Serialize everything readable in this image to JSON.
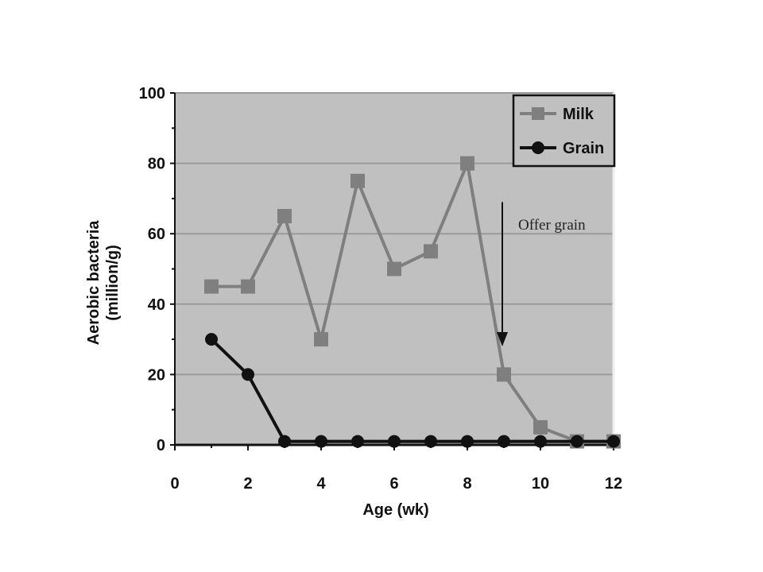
{
  "chart_data": {
    "type": "line",
    "x": [
      1,
      2,
      3,
      4,
      5,
      6,
      7,
      8,
      9,
      10,
      11,
      12
    ],
    "series": [
      {
        "name": "Milk",
        "values": [
          45,
          45,
          65,
          30,
          75,
          50,
          55,
          80,
          20,
          5,
          1,
          1
        ],
        "color": "#7f7f7f",
        "marker": "square"
      },
      {
        "name": "Grain",
        "values": [
          30,
          20,
          1,
          1,
          1,
          1,
          1,
          1,
          1,
          1,
          1,
          1
        ],
        "color": "#111111",
        "marker": "circle"
      }
    ],
    "xlabel": "Age (wk)",
    "ylabel_lines": [
      "Aerobic bacteria",
      "(million/g)"
    ],
    "xlim": [
      0,
      12
    ],
    "ylim": [
      0,
      100
    ],
    "x_ticks": [
      0,
      2,
      4,
      6,
      8,
      10,
      12
    ],
    "y_ticks": [
      0,
      20,
      40,
      60,
      80,
      100
    ],
    "grid": true,
    "plot_background": "#c0c0c0",
    "legend_position": "top-right",
    "annotation": {
      "text": "Offer grain",
      "arrow_x": 9,
      "arrow_y_from": 69,
      "arrow_y_to": 28
    }
  }
}
